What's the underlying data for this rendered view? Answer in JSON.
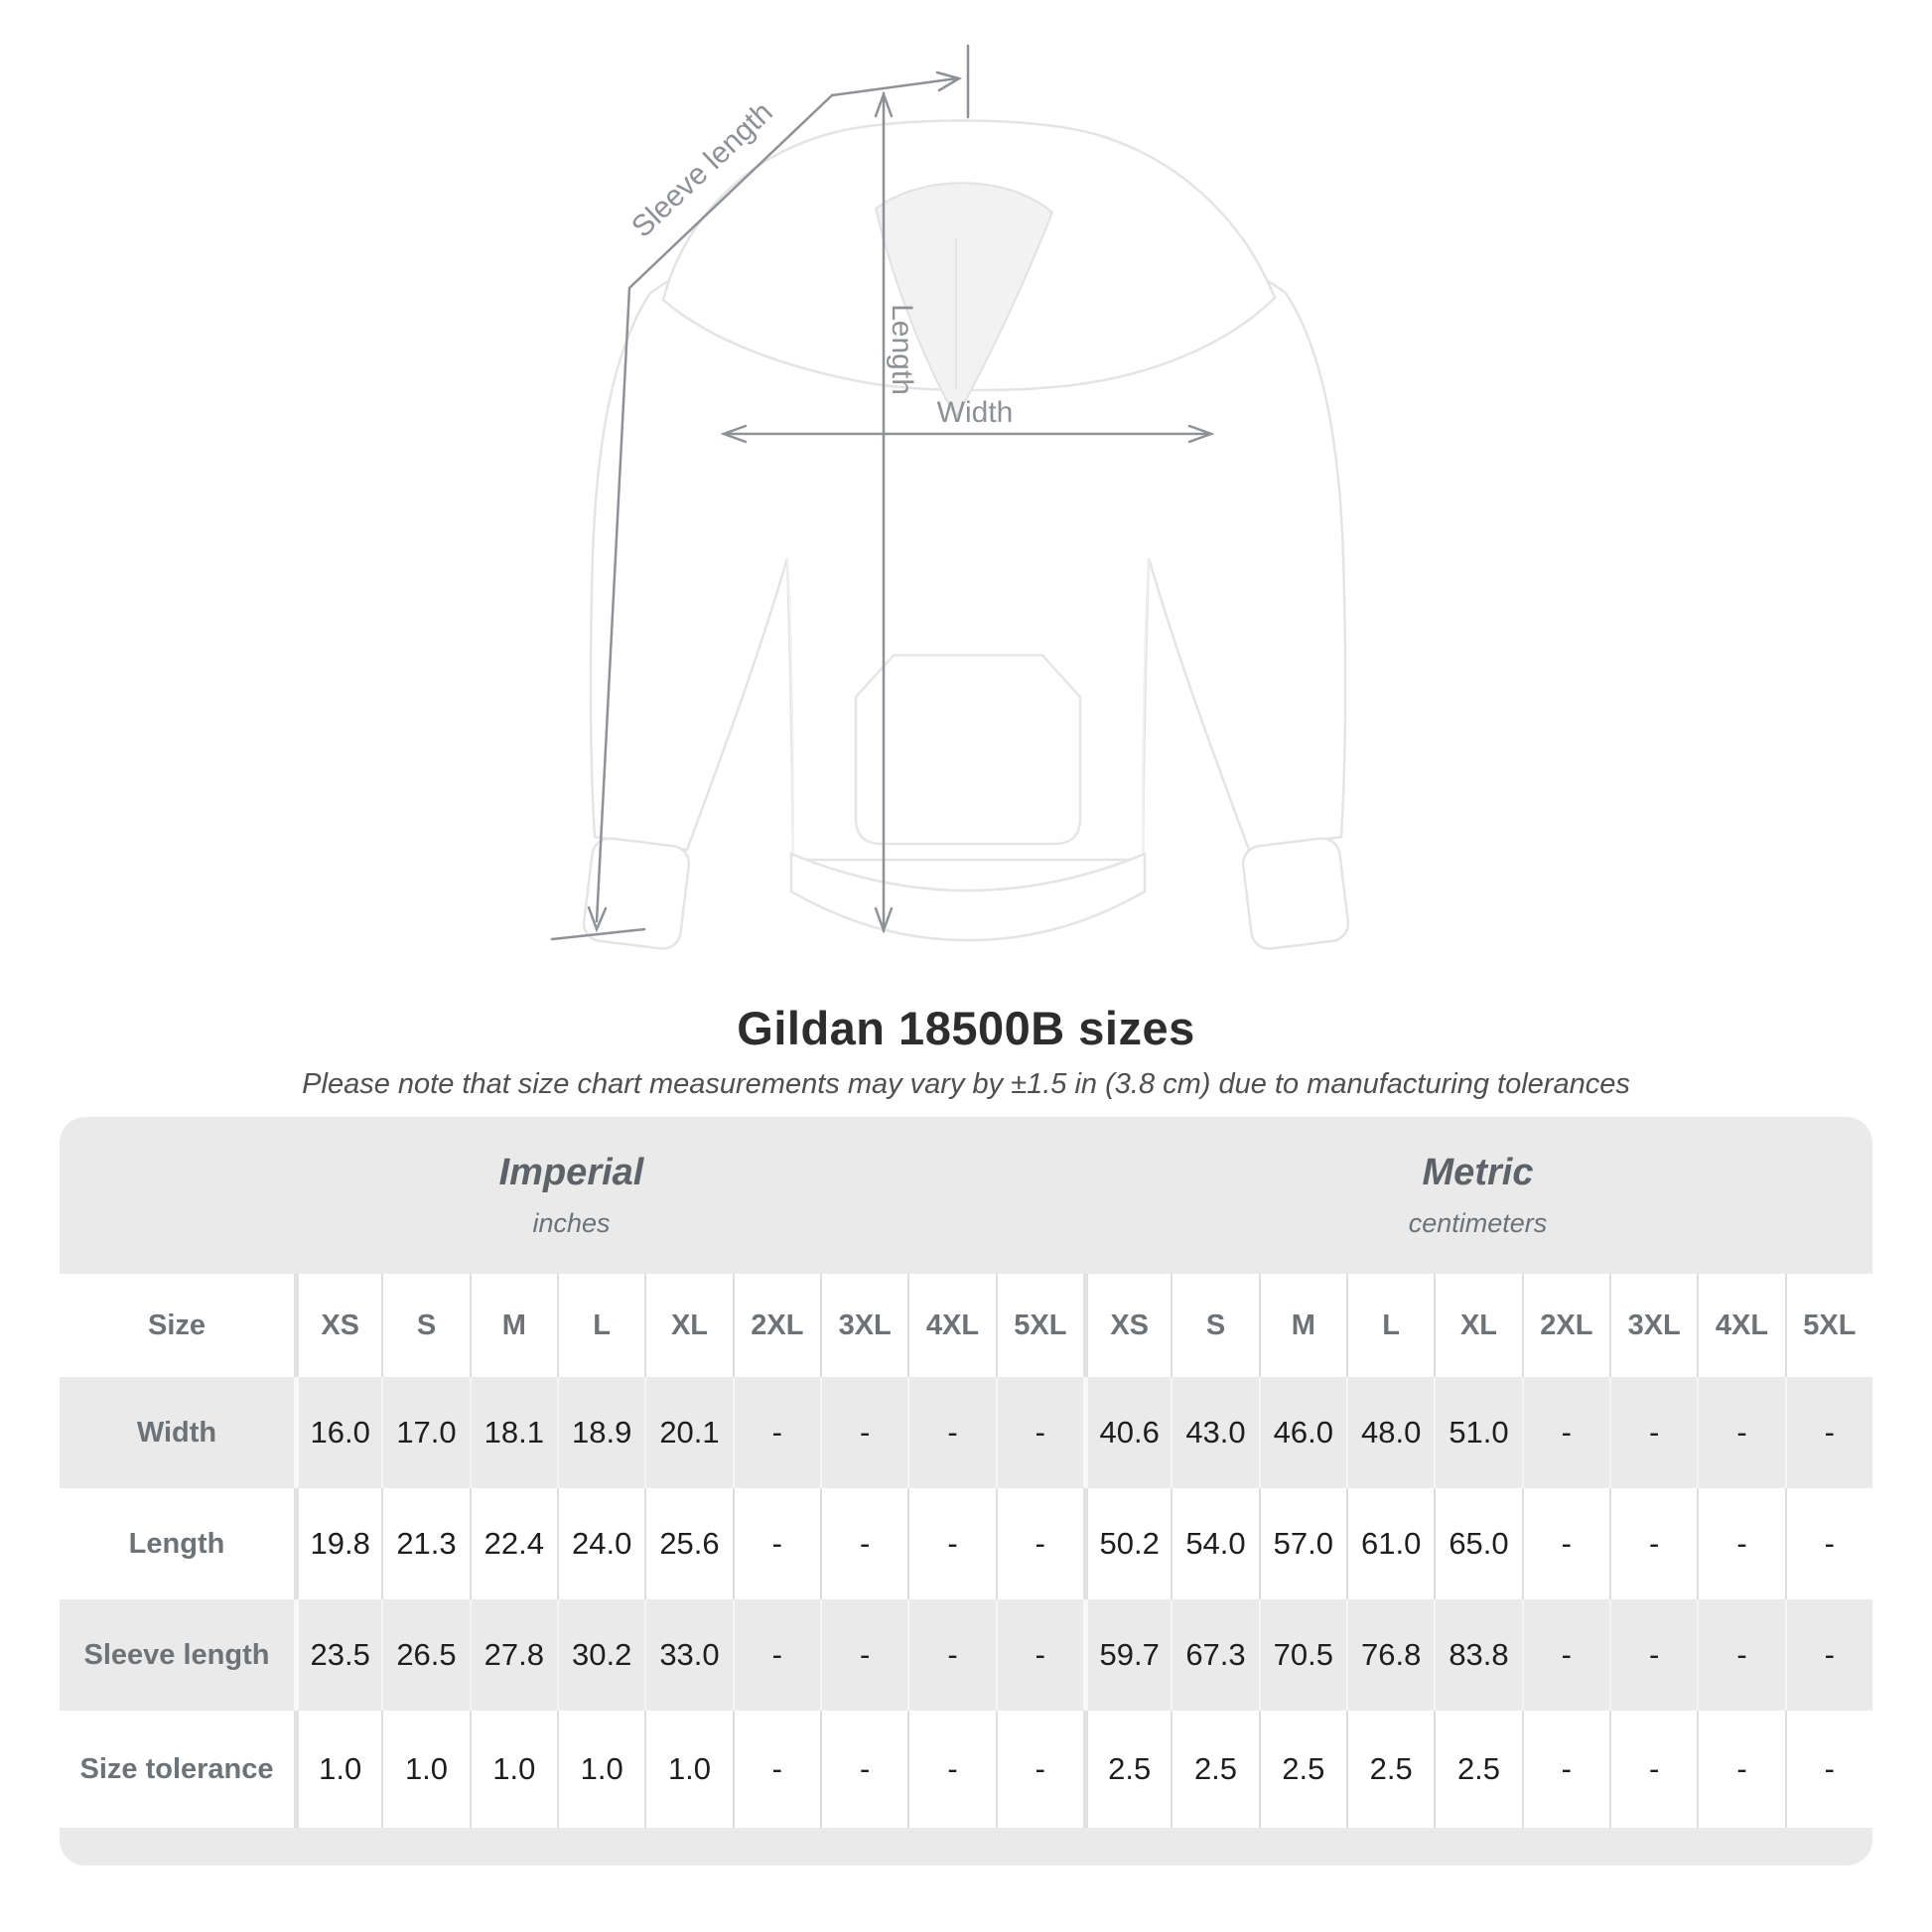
{
  "title": "Gildan 18500B sizes",
  "subtitle": "Please note that size chart measurements may vary by ±1.5 in (3.8 cm) due to manufacturing tolerances",
  "diagram": {
    "product": "white pullover hoodie front view",
    "labels": {
      "sleeve_length": "Sleeve length",
      "length": "Length",
      "width": "Width"
    }
  },
  "table": {
    "sections": [
      {
        "label": "Imperial",
        "sublabel": "inches"
      },
      {
        "label": "Metric",
        "sublabel": "centimeters"
      }
    ],
    "size_header": "Size",
    "sizes": [
      "XS",
      "S",
      "M",
      "L",
      "XL",
      "2XL",
      "3XL",
      "4XL",
      "5XL"
    ],
    "rows": [
      {
        "label": "Width",
        "imperial": [
          "16.0",
          "17.0",
          "18.1",
          "18.9",
          "20.1",
          "-",
          "-",
          "-",
          "-"
        ],
        "metric": [
          "40.6",
          "43.0",
          "46.0",
          "48.0",
          "51.0",
          "-",
          "-",
          "-",
          "-"
        ]
      },
      {
        "label": "Length",
        "imperial": [
          "19.8",
          "21.3",
          "22.4",
          "24.0",
          "25.6",
          "-",
          "-",
          "-",
          "-"
        ],
        "metric": [
          "50.2",
          "54.0",
          "57.0",
          "61.0",
          "65.0",
          "-",
          "-",
          "-",
          "-"
        ]
      },
      {
        "label": "Sleeve length",
        "imperial": [
          "23.5",
          "26.5",
          "27.8",
          "30.2",
          "33.0",
          "-",
          "-",
          "-",
          "-"
        ],
        "metric": [
          "59.7",
          "67.3",
          "70.5",
          "76.8",
          "83.8",
          "-",
          "-",
          "-",
          "-"
        ]
      },
      {
        "label": "Size tolerance",
        "imperial": [
          "1.0",
          "1.0",
          "1.0",
          "1.0",
          "1.0",
          "-",
          "-",
          "-",
          "-"
        ],
        "metric": [
          "2.5",
          "2.5",
          "2.5",
          "2.5",
          "2.5",
          "-",
          "-",
          "-",
          "-"
        ]
      }
    ]
  },
  "colors": {
    "table_bg": "#eaeaea",
    "row_white": "#ffffff",
    "measure_line": "#8e9296",
    "text_dark": "#1e1e1e",
    "text_gray": "#6d7277",
    "hoodie_outline": "#e4e4e4"
  }
}
